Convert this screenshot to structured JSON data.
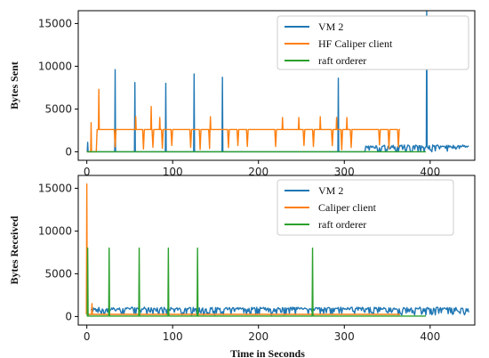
{
  "chart_data": [
    {
      "type": "line",
      "ylabel": "Bytes Sent",
      "xlabel": "",
      "xlim": [
        -10,
        452
      ],
      "ylim": [
        -1000,
        16500
      ],
      "xticks": [
        0,
        100,
        200,
        300,
        400
      ],
      "yticks": [
        0,
        5000,
        10000,
        15000
      ],
      "xtick_labels": [
        "0",
        "100",
        "200",
        "300",
        "400"
      ],
      "ytick_labels": [
        "0",
        "5000",
        "10000",
        "15000"
      ],
      "legend_position": "top-right",
      "series": [
        {
          "name": "VM 2",
          "color": "#1f77b4",
          "pattern": "spiky-noise",
          "x_range": [
            0,
            445
          ],
          "baseline": 300,
          "noise": 450,
          "active_from": 325,
          "spikes": [
            [
              1,
              1100
            ],
            [
              33,
              9600
            ],
            [
              56,
              8100
            ],
            [
              92,
              8000
            ],
            [
              125,
              9100
            ],
            [
              158,
              8700
            ],
            [
              293,
              8600
            ],
            [
              396,
              16500
            ]
          ]
        },
        {
          "name": "HF Caliper client",
          "color": "#ff7f0e",
          "pattern": "plateau",
          "x_range": [
            0,
            365
          ],
          "plateau_start": 12,
          "plateau": 2600,
          "gap_every": 11,
          "spikes": [
            [
              5,
              3400
            ],
            [
              14,
              7300
            ],
            [
              57,
              4100
            ],
            [
              75,
              5300
            ],
            [
              85,
              4000
            ],
            [
              144,
              4100
            ],
            [
              228,
              4000
            ],
            [
              247,
              4000
            ],
            [
              272,
              4100
            ],
            [
              291,
              4000
            ],
            [
              303,
              4000
            ]
          ]
        },
        {
          "name": "raft orderer",
          "color": "#2ca02c",
          "pattern": "flat",
          "x_range": [
            0,
            395
          ],
          "baseline": 0,
          "spikes": []
        }
      ]
    },
    {
      "type": "line",
      "ylabel": "Bytes Received",
      "xlabel": "Time in Seconds",
      "xlim": [
        -10,
        452
      ],
      "ylim": [
        -1000,
        16500
      ],
      "xticks": [
        0,
        100,
        200,
        300,
        400
      ],
      "yticks": [
        0,
        5000,
        10000,
        15000
      ],
      "xtick_labels": [
        "0",
        "100",
        "200",
        "300",
        "400"
      ],
      "ytick_labels": [
        "0",
        "5000",
        "10000",
        "15000"
      ],
      "legend_position": "top-right",
      "series": [
        {
          "name": "VM 2",
          "color": "#1f77b4",
          "pattern": "spiky-noise",
          "x_range": [
            5,
            445
          ],
          "baseline": 600,
          "noise": 450,
          "active_from": 5,
          "spikes": []
        },
        {
          "name": "Caliper client",
          "color": "#ff7f0e",
          "pattern": "decay",
          "x_range": [
            0,
            365
          ],
          "baseline": 250,
          "spikes": [
            [
              0,
              15500
            ],
            [
              6,
              1500
            ]
          ]
        },
        {
          "name": " raft orderer",
          "color": "#2ca02c",
          "pattern": "flat",
          "x_range": [
            0,
            395
          ],
          "baseline": 50,
          "spikes": [
            [
              1,
              8000
            ],
            [
              26,
              8000
            ],
            [
              61,
              8000
            ],
            [
              95,
              8000
            ],
            [
              129,
              8000
            ],
            [
              263,
              8000
            ]
          ]
        }
      ]
    }
  ]
}
